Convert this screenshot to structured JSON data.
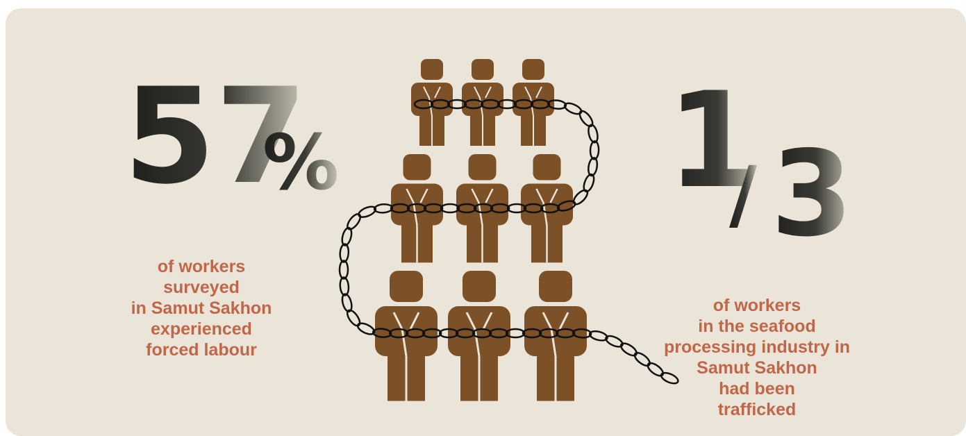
{
  "left": {
    "number": "57",
    "unit": "%",
    "caption": [
      "of workers",
      "surveyed",
      "in Samut Sakhon",
      "experienced",
      "forced labour"
    ]
  },
  "right": {
    "numerator": "1",
    "slash": "/",
    "denominator": "3",
    "caption": [
      "of workers",
      "in the seafood",
      "processing industry in",
      "Samut Sakhon",
      "had been",
      "trafficked"
    ]
  }
}
